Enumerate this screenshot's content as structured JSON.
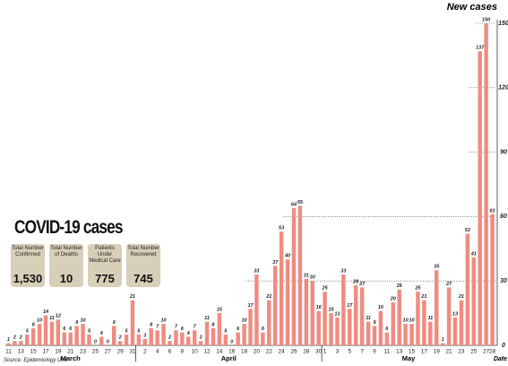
{
  "chart_data": {
    "type": "bar",
    "title": "New cases",
    "x_label": "Date",
    "categories": [
      "11",
      null,
      "13",
      null,
      "15",
      null,
      "17",
      null,
      "19",
      null,
      "21",
      null,
      "23",
      null,
      "25",
      null,
      "27",
      null,
      "29",
      null,
      "31",
      null,
      "2",
      null,
      "4",
      null,
      "6",
      null,
      "8",
      null,
      "10",
      null,
      "12",
      null,
      "14",
      null,
      "16",
      null,
      "18",
      null,
      "20",
      null,
      "22",
      null,
      "24",
      null,
      "26",
      null,
      "28",
      null,
      "30",
      "1",
      null,
      "3",
      null,
      "5",
      null,
      "7",
      null,
      "9",
      null,
      "11",
      null,
      "13",
      null,
      "15",
      null,
      "17",
      null,
      "19",
      null,
      "21",
      null,
      "23",
      null,
      "25",
      null,
      "27",
      "28"
    ],
    "values": [
      1,
      2,
      2,
      5,
      8,
      10,
      14,
      11,
      12,
      6,
      6,
      9,
      10,
      5,
      0,
      4,
      0,
      9,
      2,
      5,
      21,
      5,
      3,
      8,
      7,
      10,
      2,
      7,
      6,
      4,
      7,
      2,
      11,
      8,
      15,
      5,
      0,
      6,
      10,
      17,
      33,
      6,
      21,
      37,
      53,
      40,
      64,
      65,
      31,
      30,
      16,
      25,
      15,
      13,
      33,
      17,
      28,
      27,
      11,
      9,
      16,
      6,
      20,
      26,
      10,
      10,
      25,
      21,
      11,
      35,
      1,
      27,
      13,
      21,
      52,
      41,
      137,
      150,
      61
    ],
    "months": [
      "March",
      "April",
      "May"
    ],
    "color": "#f08b80",
    "ylim": [
      0,
      150
    ],
    "yticks": [
      0,
      30,
      60,
      90,
      120,
      150
    ],
    "grid": true
  },
  "panel": {
    "title": "COVID-19 cases",
    "stats": [
      {
        "label": "Total Number Confirmed",
        "value": "1,530"
      },
      {
        "label": "Total Number of Deaths",
        "value": "10"
      },
      {
        "label": "Patients Under Medical Care",
        "value": "775"
      },
      {
        "label": "Total Number Recovered",
        "value": "745"
      }
    ]
  },
  "source": "Source: Epidemiology Unit"
}
